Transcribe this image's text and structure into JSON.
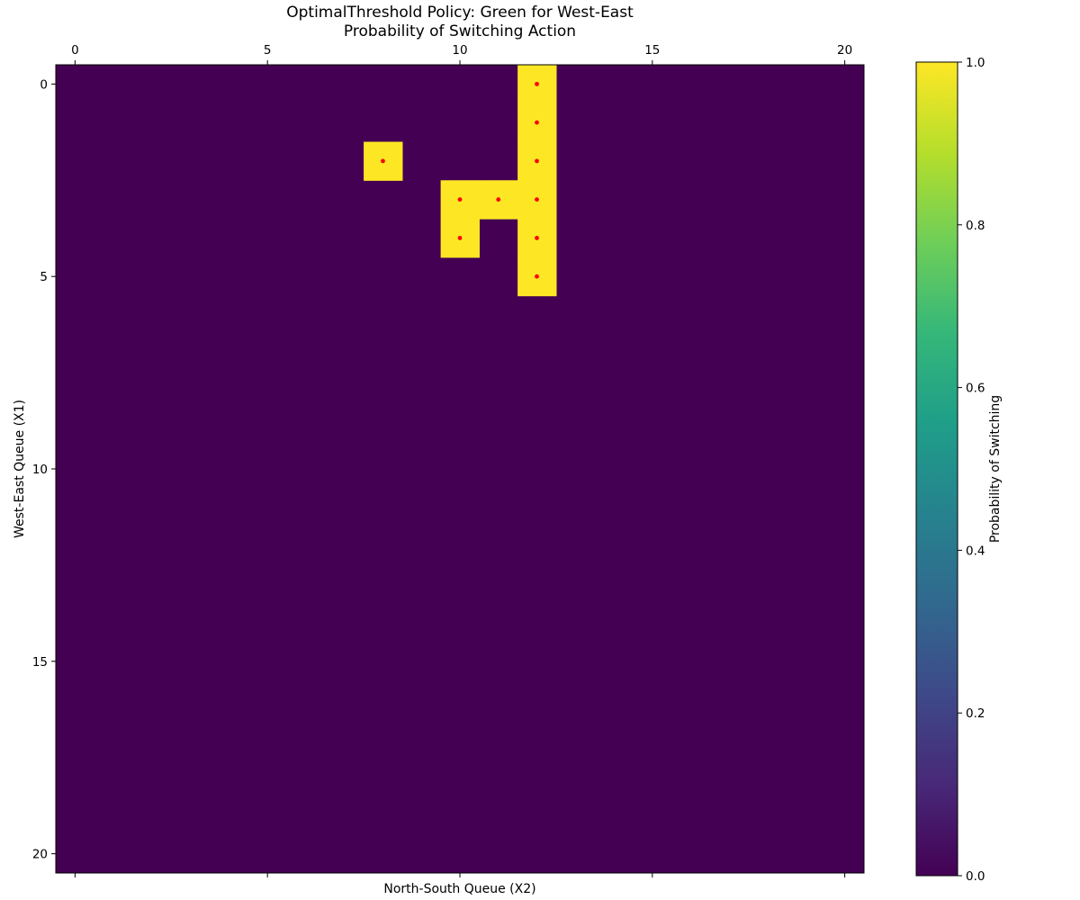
{
  "chart_data": {
    "type": "heatmap",
    "title": "OptimalThreshold Policy: Green for West-East",
    "subtitle": "Probability of Switching Action",
    "xlabel": "North-South Queue (X2)",
    "ylabel": "West-East Queue (X1)",
    "x_range": [
      0,
      20
    ],
    "y_range": [
      0,
      20
    ],
    "x_ticks": [
      0,
      5,
      10,
      15,
      20
    ],
    "y_ticks": [
      0,
      5,
      10,
      15,
      20
    ],
    "x_tick_labels": [
      "0",
      "5",
      "10",
      "15",
      "20"
    ],
    "y_tick_labels": [
      "0",
      "5",
      "10",
      "15",
      "20"
    ],
    "x_axis_position": "top",
    "y_axis_inverted": true,
    "grid": false,
    "background_value": 0.0,
    "cells": [
      {
        "x1": 0,
        "x2": 12,
        "value": 1.0
      },
      {
        "x1": 1,
        "x2": 12,
        "value": 1.0
      },
      {
        "x1": 2,
        "x2": 8,
        "value": 1.0
      },
      {
        "x1": 2,
        "x2": 12,
        "value": 1.0
      },
      {
        "x1": 3,
        "x2": 10,
        "value": 1.0
      },
      {
        "x1": 3,
        "x2": 11,
        "value": 1.0
      },
      {
        "x1": 3,
        "x2": 12,
        "value": 1.0
      },
      {
        "x1": 4,
        "x2": 10,
        "value": 1.0
      },
      {
        "x1": 4,
        "x2": 12,
        "value": 1.0
      },
      {
        "x1": 5,
        "x2": 12,
        "value": 1.0
      }
    ],
    "markers": [
      {
        "x1": 0,
        "x2": 12
      },
      {
        "x1": 1,
        "x2": 12
      },
      {
        "x1": 2,
        "x2": 8
      },
      {
        "x1": 2,
        "x2": 12
      },
      {
        "x1": 3,
        "x2": 10
      },
      {
        "x1": 3,
        "x2": 11
      },
      {
        "x1": 3,
        "x2": 12
      },
      {
        "x1": 4,
        "x2": 10
      },
      {
        "x1": 4,
        "x2": 12
      },
      {
        "x1": 5,
        "x2": 12
      }
    ],
    "marker_color": "#ff0000",
    "colormap": "viridis",
    "colormap_stops": [
      "#440154",
      "#482878",
      "#3e4989",
      "#31688e",
      "#26828e",
      "#1f9e89",
      "#35b779",
      "#6ece58",
      "#b5de2b",
      "#fde725"
    ],
    "colorbar": {
      "label": "Probability of Switching",
      "range": [
        0.0,
        1.0
      ],
      "ticks": [
        0.0,
        0.2,
        0.4,
        0.6,
        0.8,
        1.0
      ],
      "tick_labels": [
        "0.0",
        "0.2",
        "0.4",
        "0.6",
        "0.8",
        "1.0"
      ],
      "position": "right"
    }
  }
}
